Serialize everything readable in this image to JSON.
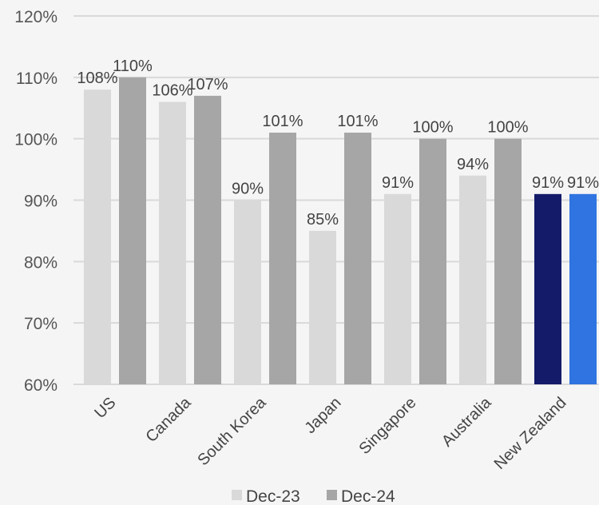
{
  "chart_data": {
    "type": "bar",
    "categories": [
      "US",
      "Canada",
      "South Korea",
      "Japan",
      "Singapore",
      "Australia",
      "New Zealand"
    ],
    "series": [
      {
        "name": "Dec-23",
        "values": [
          108,
          106,
          90,
          85,
          91,
          94,
          91
        ],
        "labels": [
          "108%",
          "106%",
          "90%",
          "85%",
          "91%",
          "94%",
          "91%"
        ]
      },
      {
        "name": "Dec-24",
        "values": [
          110,
          107,
          101,
          101,
          100,
          100,
          91
        ],
        "labels": [
          "110%",
          "107%",
          "101%",
          "101%",
          "100%",
          "100%",
          "91%"
        ]
      }
    ],
    "yticks": [
      "60%",
      "70%",
      "80%",
      "90%",
      "100%",
      "110%",
      "120%"
    ],
    "ylim": [
      60,
      120
    ],
    "colors": {
      "dec23": "#d9d9d9",
      "dec24": "#a6a6a6",
      "nz_dec23": "#141b69",
      "nz_dec24": "#2f74e0",
      "grid": "#d9d9d9"
    },
    "grid": true,
    "legend_position": "bottom"
  }
}
